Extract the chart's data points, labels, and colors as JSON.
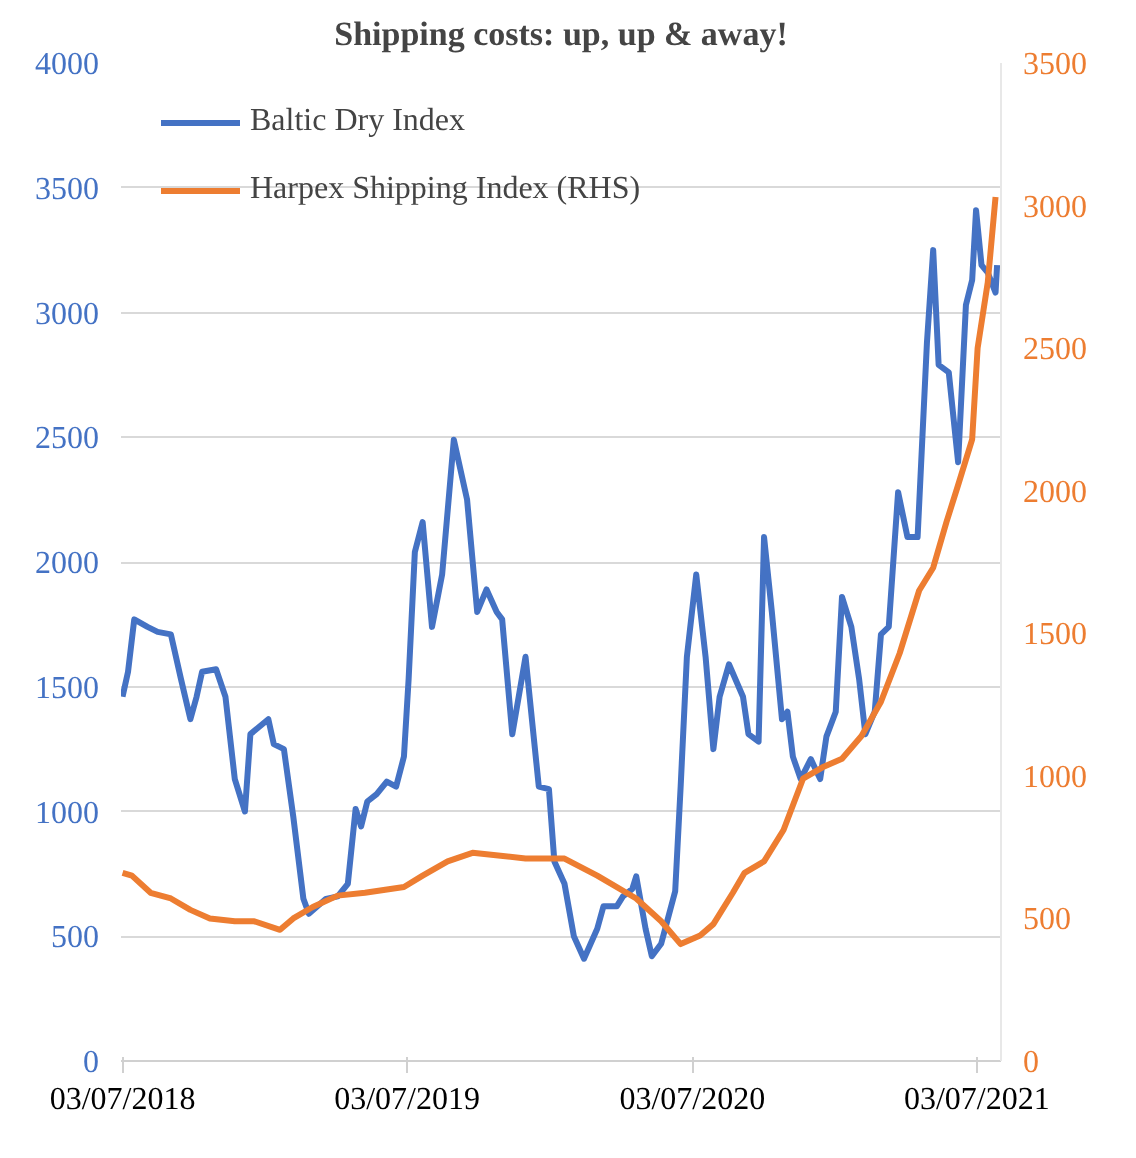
{
  "chart_data": {
    "type": "line",
    "title": "Shipping costs: up, up & away!",
    "xlim": [
      "2018-07-01",
      "2021-08-03"
    ],
    "xticks": [
      {
        "value": "2018-07-03",
        "label": "03/07/2018"
      },
      {
        "value": "2019-07-03",
        "label": "03/07/2019"
      },
      {
        "value": "2020-07-03",
        "label": "03/07/2020"
      },
      {
        "value": "2021-07-03",
        "label": "03/07/2021"
      }
    ],
    "ylim": [
      0,
      4000
    ],
    "yticks": [
      0,
      500,
      1000,
      1500,
      2000,
      2500,
      3000,
      3500,
      4000
    ],
    "y2lim": [
      0,
      3500
    ],
    "y2ticks": [
      0,
      500,
      1000,
      1500,
      2000,
      2500,
      3000,
      3500
    ],
    "grid": "y",
    "legend": "top left",
    "marker": "none",
    "line_style": "solid",
    "series": [
      {
        "name": "Baltic Dry Index",
        "color": "#4472c4",
        "x": [
          "2018-07-03",
          "2018-07-10",
          "2018-07-18",
          "2018-08-04",
          "2018-08-17",
          "2018-09-03",
          "2018-09-16",
          "2018-09-28",
          "2018-10-06",
          "2018-10-13",
          "2018-10-31",
          "2018-11-12",
          "2018-11-24",
          "2018-12-07",
          "2018-12-14",
          "2019-01-06",
          "2019-01-13",
          "2019-01-26",
          "2019-02-07",
          "2019-02-20",
          "2019-02-27",
          "2019-03-21",
          "2019-04-05",
          "2019-04-18",
          "2019-04-28",
          "2019-05-05",
          "2019-05-13",
          "2019-05-25",
          "2019-06-07",
          "2019-06-19",
          "2019-06-29",
          "2019-07-05",
          "2019-07-13",
          "2019-07-23",
          "2019-08-04",
          "2019-08-17",
          "2019-09-01",
          "2019-09-18",
          "2019-10-01",
          "2019-10-13",
          "2019-10-26",
          "2019-11-02",
          "2019-11-15",
          "2019-12-02",
          "2019-12-19",
          "2020-01-01",
          "2020-01-08",
          "2020-01-21",
          "2020-02-02",
          "2020-02-15",
          "2020-03-03",
          "2020-03-11",
          "2020-03-28",
          "2020-04-05",
          "2020-04-17",
          "2020-04-22",
          "2020-05-04",
          "2020-05-12",
          "2020-05-24",
          "2020-06-11",
          "2020-06-18",
          "2020-06-26",
          "2020-07-08",
          "2020-07-20",
          "2020-07-30",
          "2020-08-07",
          "2020-08-19",
          "2020-09-06",
          "2020-09-13",
          "2020-09-26",
          "2020-10-03",
          "2020-10-13",
          "2020-10-26",
          "2020-11-02",
          "2020-11-09",
          "2020-11-19",
          "2020-12-02",
          "2020-12-14",
          "2020-12-22",
          "2021-01-03",
          "2021-01-11",
          "2021-01-23",
          "2021-02-02",
          "2021-02-10",
          "2021-02-22",
          "2021-03-02",
          "2021-03-12",
          "2021-03-24",
          "2021-04-05",
          "2021-04-18",
          "2021-04-30",
          "2021-05-08",
          "2021-05-15",
          "2021-05-28",
          "2021-06-09",
          "2021-06-19",
          "2021-06-27",
          "2021-07-02",
          "2021-07-09",
          "2021-07-17",
          "2021-07-27",
          "2021-07-29"
        ],
        "values": [
          1460,
          1560,
          1770,
          1740,
          1720,
          1710,
          1530,
          1370,
          1460,
          1560,
          1570,
          1460,
          1130,
          1000,
          1310,
          1370,
          1270,
          1250,
          980,
          650,
          590,
          650,
          660,
          710,
          1010,
          940,
          1040,
          1070,
          1120,
          1100,
          1220,
          1530,
          2040,
          2160,
          1740,
          1950,
          2490,
          2250,
          1800,
          1890,
          1800,
          1770,
          1310,
          1620,
          1100,
          1090,
          800,
          710,
          500,
          410,
          530,
          620,
          620,
          660,
          690,
          740,
          530,
          420,
          470,
          680,
          1100,
          1620,
          1950,
          1620,
          1250,
          1460,
          1590,
          1460,
          1310,
          1280,
          2100,
          1800,
          1370,
          1400,
          1220,
          1130,
          1210,
          1130,
          1300,
          1400,
          1860,
          1740,
          1530,
          1310,
          1400,
          1710,
          1740,
          2280,
          2100,
          2100,
          2880,
          3250,
          2790,
          2760,
          2400,
          3030,
          3130,
          3410,
          3190,
          3160,
          3080,
          3190
        ]
      },
      {
        "name": "Harpex Shipping Index (RHS)",
        "color": "#ed7d31",
        "axis": "y2",
        "x": [
          "2018-07-03",
          "2018-07-15",
          "2018-08-08",
          "2018-09-03",
          "2018-09-28",
          "2018-10-23",
          "2018-11-24",
          "2018-12-19",
          "2019-01-21",
          "2019-02-07",
          "2019-03-04",
          "2019-04-05",
          "2019-05-10",
          "2019-06-29",
          "2019-07-23",
          "2019-08-24",
          "2019-09-25",
          "2019-10-31",
          "2019-12-02",
          "2020-01-21",
          "2020-03-03",
          "2020-04-22",
          "2020-05-24",
          "2020-06-18",
          "2020-07-13",
          "2020-07-30",
          "2020-08-24",
          "2020-09-08",
          "2020-10-03",
          "2020-10-28",
          "2020-11-22",
          "2020-12-17",
          "2021-01-11",
          "2021-02-05",
          "2021-03-02",
          "2021-03-26",
          "2021-04-20",
          "2021-05-08",
          "2021-05-25",
          "2021-06-09",
          "2021-06-27",
          "2021-07-04",
          "2021-07-17",
          "2021-07-27"
        ],
        "values": [
          660,
          650,
          590,
          570,
          530,
          500,
          490,
          490,
          460,
          500,
          540,
          580,
          590,
          610,
          650,
          700,
          730,
          720,
          710,
          710,
          650,
          570,
          490,
          410,
          440,
          480,
          590,
          660,
          700,
          810,
          990,
          1030,
          1060,
          1140,
          1260,
          1430,
          1650,
          1730,
          1890,
          2020,
          2180,
          2500,
          2730,
          3030
        ]
      }
    ]
  }
}
